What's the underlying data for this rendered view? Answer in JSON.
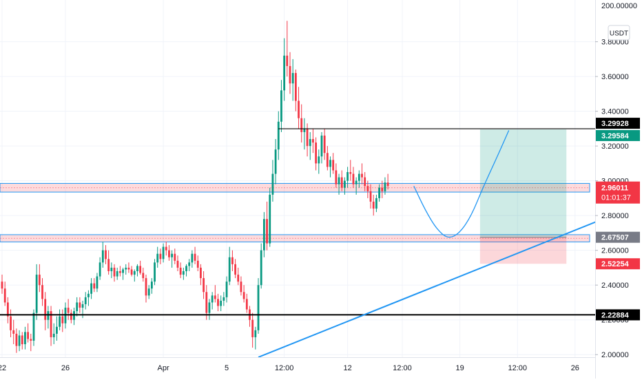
{
  "app": {
    "currency_button": "USDT"
  },
  "chart_data": {
    "type": "candlestick",
    "ylim": [
      1.985,
      4.04
    ],
    "y_axis": {
      "scale": "linear",
      "tick_values": [
        2.0,
        2.2,
        2.4,
        2.6,
        2.8,
        3.0,
        3.2,
        3.4,
        3.6,
        3.8
      ],
      "tick_labels": [
        "2.00000",
        "2.20000",
        "2.40000",
        "2.60000",
        "2.80000",
        "3.00000",
        "3.20000",
        "3.40000",
        "3.60000",
        "3.80000"
      ],
      "top_label": "200.00000"
    },
    "x_axis": {
      "ticks": [
        {
          "label": "22",
          "bar": 0
        },
        {
          "label": "26",
          "bar": 22
        },
        {
          "label": "Apr",
          "bar": 56
        },
        {
          "label": "5",
          "bar": 78
        },
        {
          "label": "12:00",
          "bar": 98
        },
        {
          "label": "12",
          "bar": 120
        },
        {
          "label": "12:00",
          "bar": 139
        },
        {
          "label": "19",
          "bar": 159
        },
        {
          "label": "12:00",
          "bar": 179
        },
        {
          "label": "26",
          "bar": 199
        }
      ]
    },
    "grid": true,
    "series": [
      {
        "ohlc": [
          [
            2.42,
            2.46,
            2.35,
            2.38
          ],
          [
            2.38,
            2.42,
            2.28,
            2.3
          ],
          [
            2.3,
            2.33,
            2.18,
            2.22
          ],
          [
            2.22,
            2.26,
            2.1,
            2.14
          ],
          [
            2.14,
            2.2,
            2.06,
            2.12
          ],
          [
            2.12,
            2.15,
            2.01,
            2.05
          ],
          [
            2.05,
            2.14,
            2.02,
            2.11
          ],
          [
            2.11,
            2.13,
            2.03,
            2.06
          ],
          [
            2.06,
            2.16,
            2.03,
            2.13
          ],
          [
            2.13,
            2.18,
            2.07,
            2.09
          ],
          [
            2.09,
            2.12,
            2.02,
            2.08
          ],
          [
            2.08,
            2.26,
            2.05,
            2.24
          ],
          [
            2.24,
            2.52,
            2.2,
            2.46
          ],
          [
            2.46,
            2.52,
            2.36,
            2.4
          ],
          [
            2.4,
            2.44,
            2.28,
            2.32
          ],
          [
            2.32,
            2.36,
            2.14,
            2.2
          ],
          [
            2.2,
            2.28,
            2.15,
            2.25
          ],
          [
            2.25,
            2.28,
            2.05,
            2.1
          ],
          [
            2.1,
            2.18,
            2.06,
            2.12
          ],
          [
            2.12,
            2.22,
            2.08,
            2.16
          ],
          [
            2.16,
            2.26,
            2.14,
            2.22
          ],
          [
            2.22,
            2.26,
            2.13,
            2.18
          ],
          [
            2.18,
            2.3,
            2.15,
            2.27
          ],
          [
            2.27,
            2.32,
            2.2,
            2.24
          ],
          [
            2.24,
            2.26,
            2.18,
            2.2
          ],
          [
            2.2,
            2.27,
            2.17,
            2.25
          ],
          [
            2.25,
            2.33,
            2.22,
            2.3
          ],
          [
            2.3,
            2.33,
            2.24,
            2.27
          ],
          [
            2.27,
            2.31,
            2.21,
            2.29
          ],
          [
            2.29,
            2.36,
            2.26,
            2.33
          ],
          [
            2.33,
            2.37,
            2.28,
            2.35
          ],
          [
            2.35,
            2.44,
            2.32,
            2.41
          ],
          [
            2.41,
            2.44,
            2.36,
            2.38
          ],
          [
            2.38,
            2.47,
            2.36,
            2.45
          ],
          [
            2.45,
            2.56,
            2.43,
            2.53
          ],
          [
            2.53,
            2.65,
            2.5,
            2.6
          ],
          [
            2.6,
            2.63,
            2.52,
            2.55
          ],
          [
            2.55,
            2.6,
            2.46,
            2.48
          ],
          [
            2.48,
            2.53,
            2.44,
            2.5
          ],
          [
            2.5,
            2.52,
            2.42,
            2.45
          ],
          [
            2.45,
            2.5,
            2.43,
            2.48
          ],
          [
            2.48,
            2.51,
            2.45,
            2.47
          ],
          [
            2.47,
            2.5,
            2.43,
            2.49
          ],
          [
            2.49,
            2.52,
            2.46,
            2.5
          ],
          [
            2.5,
            2.53,
            2.47,
            2.49
          ],
          [
            2.49,
            2.51,
            2.45,
            2.46
          ],
          [
            2.46,
            2.49,
            2.42,
            2.48
          ],
          [
            2.48,
            2.52,
            2.45,
            2.51
          ],
          [
            2.51,
            2.54,
            2.46,
            2.47
          ],
          [
            2.47,
            2.5,
            2.42,
            2.44
          ],
          [
            2.44,
            2.46,
            2.3,
            2.34
          ],
          [
            2.34,
            2.4,
            2.32,
            2.38
          ],
          [
            2.38,
            2.44,
            2.35,
            2.42
          ],
          [
            2.42,
            2.55,
            2.4,
            2.53
          ],
          [
            2.53,
            2.62,
            2.5,
            2.58
          ],
          [
            2.58,
            2.61,
            2.52,
            2.55
          ],
          [
            2.55,
            2.64,
            2.53,
            2.62
          ],
          [
            2.62,
            2.65,
            2.57,
            2.6
          ],
          [
            2.6,
            2.63,
            2.54,
            2.56
          ],
          [
            2.56,
            2.6,
            2.5,
            2.58
          ],
          [
            2.58,
            2.61,
            2.52,
            2.54
          ],
          [
            2.54,
            2.57,
            2.48,
            2.5
          ],
          [
            2.5,
            2.53,
            2.44,
            2.46
          ],
          [
            2.46,
            2.5,
            2.43,
            2.48
          ],
          [
            2.48,
            2.52,
            2.45,
            2.51
          ],
          [
            2.51,
            2.55,
            2.48,
            2.53
          ],
          [
            2.53,
            2.6,
            2.5,
            2.58
          ],
          [
            2.58,
            2.62,
            2.52,
            2.54
          ],
          [
            2.54,
            2.57,
            2.48,
            2.5
          ],
          [
            2.5,
            2.52,
            2.4,
            2.44
          ],
          [
            2.44,
            2.48,
            2.32,
            2.36
          ],
          [
            2.36,
            2.4,
            2.2,
            2.24
          ],
          [
            2.24,
            2.32,
            2.2,
            2.3
          ],
          [
            2.3,
            2.36,
            2.26,
            2.34
          ],
          [
            2.34,
            2.4,
            2.3,
            2.32
          ],
          [
            2.32,
            2.35,
            2.25,
            2.28
          ],
          [
            2.28,
            2.34,
            2.25,
            2.31
          ],
          [
            2.31,
            2.36,
            2.28,
            2.33
          ],
          [
            2.33,
            2.45,
            2.3,
            2.42
          ],
          [
            2.42,
            2.62,
            2.4,
            2.56
          ],
          [
            2.56,
            2.6,
            2.48,
            2.52
          ],
          [
            2.52,
            2.55,
            2.44,
            2.46
          ],
          [
            2.46,
            2.5,
            2.4,
            2.42
          ],
          [
            2.42,
            2.45,
            2.34,
            2.36
          ],
          [
            2.36,
            2.4,
            2.3,
            2.32
          ],
          [
            2.32,
            2.35,
            2.24,
            2.26
          ],
          [
            2.26,
            2.28,
            2.16,
            2.2
          ],
          [
            2.2,
            2.24,
            2.04,
            2.1
          ],
          [
            2.1,
            2.16,
            2.03,
            2.14
          ],
          [
            2.14,
            2.44,
            2.12,
            2.4
          ],
          [
            2.4,
            2.64,
            2.38,
            2.6
          ],
          [
            2.6,
            2.82,
            2.56,
            2.78
          ],
          [
            2.78,
            2.88,
            2.6,
            2.64
          ],
          [
            2.64,
            2.96,
            2.62,
            2.92
          ],
          [
            2.92,
            3.12,
            2.88,
            3.04
          ],
          [
            3.04,
            3.24,
            2.98,
            3.18
          ],
          [
            3.18,
            3.4,
            3.12,
            3.34
          ],
          [
            3.34,
            3.58,
            3.28,
            3.52
          ],
          [
            3.52,
            3.82,
            3.46,
            3.72
          ],
          [
            3.72,
            3.92,
            3.6,
            3.66
          ],
          [
            3.66,
            3.74,
            3.5,
            3.56
          ],
          [
            3.56,
            3.7,
            3.46,
            3.62
          ],
          [
            3.62,
            3.64,
            3.4,
            3.46
          ],
          [
            3.46,
            3.54,
            3.3,
            3.36
          ],
          [
            3.36,
            3.44,
            3.22,
            3.28
          ],
          [
            3.28,
            3.36,
            3.18,
            3.3
          ],
          [
            3.3,
            3.33,
            3.14,
            3.2
          ],
          [
            3.2,
            3.28,
            3.12,
            3.24
          ],
          [
            3.24,
            3.3,
            3.16,
            3.22
          ],
          [
            3.22,
            3.25,
            3.06,
            3.1
          ],
          [
            3.1,
            3.18,
            3.04,
            3.14
          ],
          [
            3.14,
            3.28,
            3.1,
            3.26
          ],
          [
            3.26,
            3.3,
            3.12,
            3.16
          ],
          [
            3.16,
            3.2,
            3.06,
            3.08
          ],
          [
            3.08,
            3.14,
            3.02,
            3.12
          ],
          [
            3.12,
            3.16,
            3.04,
            3.06
          ],
          [
            3.06,
            3.1,
            2.96,
            2.98
          ],
          [
            2.98,
            3.04,
            2.92,
            3.02
          ],
          [
            3.02,
            3.06,
            2.94,
            2.96
          ],
          [
            2.96,
            3.02,
            2.92,
            3.0
          ],
          [
            3.0,
            3.08,
            2.96,
            3.05
          ],
          [
            3.05,
            3.12,
            3.0,
            3.04
          ],
          [
            3.04,
            3.08,
            2.96,
            2.98
          ],
          [
            2.98,
            3.02,
            2.92,
            3.0
          ],
          [
            3.0,
            3.06,
            2.96,
            3.04
          ],
          [
            3.04,
            3.1,
            2.98,
            3.02
          ],
          [
            3.02,
            3.05,
            2.94,
            2.97
          ],
          [
            2.97,
            3.0,
            2.9,
            2.94
          ],
          [
            2.94,
            2.98,
            2.84,
            2.88
          ],
          [
            2.88,
            2.92,
            2.8,
            2.84
          ],
          [
            2.84,
            2.92,
            2.82,
            2.9
          ],
          [
            2.9,
            2.98,
            2.88,
            2.96
          ],
          [
            2.96,
            3.0,
            2.9,
            2.94
          ],
          [
            2.94,
            3.02,
            2.92,
            2.99
          ],
          [
            2.99,
            3.04,
            2.95,
            2.97
          ]
        ]
      }
    ],
    "price_lines": [
      {
        "label": "3.29928",
        "value": 3.29928,
        "color": "#000000"
      },
      {
        "label": "3.29584",
        "value": 3.29584,
        "color": "#089981"
      },
      {
        "label": "2.96011",
        "value": 2.96011,
        "color": "#f23645"
      },
      {
        "label": "01:01:37",
        "value": 2.96011,
        "color": "#f23645"
      },
      {
        "label": "2.67507",
        "value": 2.67507,
        "color": "#787b86"
      },
      {
        "label": "2.52254",
        "value": 2.52254,
        "color": "#f23645"
      },
      {
        "label": "2.22884",
        "value": 2.22884,
        "color": "#000000"
      }
    ],
    "drawings": {
      "horizontal_lines": [
        {
          "value": 3.29928,
          "from_bar": 96,
          "color": "#000000"
        },
        {
          "value": 2.22884,
          "from_bar": -1,
          "color": "#000000"
        }
      ],
      "zones": [
        {
          "low": 2.935,
          "high": 2.985,
          "color": "#2196f3"
        },
        {
          "low": 2.648,
          "high": 2.69,
          "color": "#2196f3"
        }
      ],
      "trendline": [
        {
          "bar": 89,
          "value": 1.985
        },
        {
          "bar": 226,
          "value": 2.895
        }
      ],
      "projection": [
        {
          "bar": 143,
          "value": 2.97
        },
        {
          "bar": 147,
          "value": 2.83
        },
        {
          "bar": 151,
          "value": 2.72
        },
        {
          "bar": 155,
          "value": 2.665
        },
        {
          "bar": 159,
          "value": 2.7
        },
        {
          "bar": 163,
          "value": 2.8
        },
        {
          "bar": 167,
          "value": 2.96
        },
        {
          "bar": 172,
          "value": 3.14
        },
        {
          "bar": 176,
          "value": 3.29
        }
      ],
      "long_position": {
        "from_bar": 166,
        "to_bar": 196,
        "entry": 2.675,
        "target": 3.2958,
        "stop": 2.5225
      }
    },
    "colors": {
      "up": "#089981",
      "down": "#f23645",
      "drawing": "#2196f3",
      "grid": "#f0f3fa"
    }
  }
}
